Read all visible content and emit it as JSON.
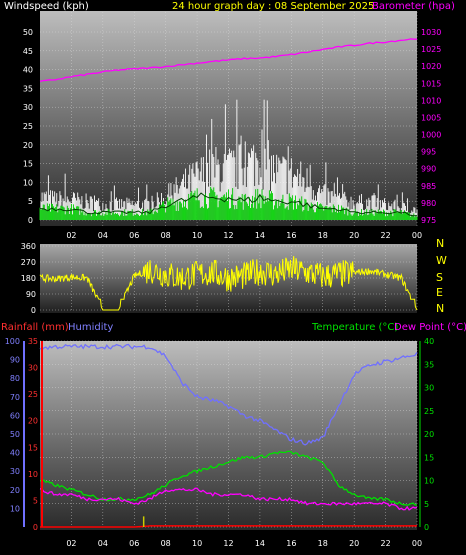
{
  "header": {
    "wind_title": "Windspeed (kph)",
    "day_title": "24 hour graph day : 08 September 2025",
    "baro_title": "Barometer (hpa)"
  },
  "mid_header": {
    "rain_title": "Rainfall (mm)",
    "humidity_title": "Humidity",
    "temp_title": "Temperature (°C)",
    "dew_title": "Dew Point (°C)"
  },
  "colors": {
    "wind_gust": "#ffffff",
    "wind_avg": "#00d000",
    "barometer": "#ff00ff",
    "direction": "#ffff00",
    "rain": "#ff0000",
    "humidity": "#7070ff",
    "temperature": "#00e000",
    "dewpoint": "#ff00ff"
  },
  "chart_data": [
    {
      "type": "line",
      "x_ticks": [
        "02",
        "04",
        "06",
        "08",
        "10",
        "12",
        "14",
        "16",
        "18",
        "20",
        "22",
        "00"
      ],
      "y_left_ticks": [
        "0",
        "5",
        "10",
        "15",
        "20",
        "25",
        "30",
        "35",
        "40",
        "45",
        "50"
      ],
      "y_right_ticks": [
        "975",
        "980",
        "985",
        "990",
        "995",
        "1000",
        "1005",
        "1010",
        "1015",
        "1020",
        "1025",
        "1030"
      ],
      "ylim": [
        0,
        50
      ],
      "y2lim": [
        975,
        1030
      ],
      "x_hours": [
        0,
        1,
        2,
        3,
        4,
        5,
        6,
        7,
        8,
        9,
        10,
        11,
        12,
        13,
        14,
        15,
        16,
        17,
        18,
        19,
        20,
        21,
        22,
        23,
        24
      ],
      "series": [
        {
          "axis": "left",
          "style": "gust",
          "values": [
            9,
            8,
            8,
            7,
            6,
            6,
            6,
            6,
            9,
            13,
            17,
            20,
            20,
            21,
            24,
            19,
            18,
            15,
            10,
            8,
            7,
            7,
            6,
            5,
            4
          ]
        },
        {
          "axis": "left",
          "style": "avg",
          "values": [
            3,
            3,
            3,
            2,
            2,
            2,
            2,
            2,
            4,
            5,
            6,
            6,
            6,
            5,
            6,
            5,
            5,
            4,
            3,
            3,
            2,
            2,
            2,
            2,
            1
          ]
        },
        {
          "axis": "right",
          "style": "barometer",
          "values": [
            1015.5,
            1016.1,
            1016.9,
            1017.6,
            1018.3,
            1018.9,
            1019.2,
            1019.5,
            1019.9,
            1020.4,
            1020.9,
            1021.4,
            1021.8,
            1022.2,
            1022.4,
            1022.8,
            1023.4,
            1024.1,
            1024.9,
            1025.6,
            1026.1,
            1026.7,
            1027.1,
            1027.6,
            1028.1
          ]
        }
      ]
    },
    {
      "type": "scatter",
      "y_left_ticks": [
        "0",
        "90",
        "180",
        "270",
        "360"
      ],
      "y_right_ticks": [
        "N",
        "W",
        "S",
        "E",
        "N"
      ],
      "ylim": [
        0,
        360
      ],
      "x_hours": [
        0,
        1,
        2,
        3,
        4,
        5,
        6,
        7,
        8,
        9,
        10,
        11,
        12,
        13,
        14,
        15,
        16,
        17,
        18,
        19,
        20,
        21,
        22,
        23,
        24
      ],
      "series": [
        {
          "style": "direction",
          "values": [
            180,
            175,
            185,
            180,
            0,
            0,
            190,
            230,
            200,
            180,
            200,
            210,
            180,
            190,
            220,
            200,
            230,
            210,
            190,
            200,
            210,
            220,
            200,
            180,
            0
          ]
        }
      ]
    },
    {
      "type": "line",
      "x_ticks": [
        "02",
        "04",
        "06",
        "08",
        "10",
        "12",
        "14",
        "16",
        "18",
        "20",
        "22",
        "00"
      ],
      "y_left_rain_ticks": [
        "0",
        "5",
        "10",
        "15",
        "20",
        "25",
        "30",
        "35"
      ],
      "y_left_hum_ticks": [
        "10",
        "20",
        "30",
        "40",
        "50",
        "60",
        "70",
        "80",
        "90",
        "100"
      ],
      "y_right_ticks": [
        "0",
        "5",
        "10",
        "15",
        "20",
        "25",
        "30",
        "35",
        "40"
      ],
      "hum_lim": [
        0,
        100
      ],
      "rain_lim": [
        0,
        35
      ],
      "temp_lim": [
        0,
        40
      ],
      "x_hours": [
        0,
        1,
        2,
        3,
        4,
        5,
        6,
        7,
        8,
        9,
        10,
        11,
        12,
        13,
        14,
        15,
        16,
        17,
        18,
        19,
        20,
        21,
        22,
        23,
        24
      ],
      "series": [
        {
          "axis": "hum",
          "style": "humidity",
          "values": [
            96,
            97,
            97,
            97,
            97,
            97,
            97,
            97,
            92,
            78,
            70,
            68,
            65,
            60,
            57,
            52,
            47,
            45,
            48,
            65,
            82,
            87,
            89,
            91,
            93
          ]
        },
        {
          "axis": "temp",
          "style": "temperature",
          "values": [
            10,
            9,
            8,
            7,
            6,
            6,
            6,
            7,
            9,
            11,
            12,
            13,
            14,
            15,
            15,
            16,
            16,
            15,
            14,
            9,
            7,
            6,
            6,
            5,
            5
          ]
        },
        {
          "axis": "temp",
          "style": "dewpoint",
          "values": [
            8,
            7,
            7,
            6,
            6,
            6,
            5,
            6,
            8,
            8,
            8,
            7,
            7,
            7,
            6,
            6,
            6,
            5,
            5,
            5,
            5,
            5,
            5,
            4,
            4
          ]
        },
        {
          "axis": "rain",
          "style": "rain",
          "values": [
            0,
            0,
            0,
            0,
            0,
            0,
            0,
            0.2,
            0.2,
            0.2,
            0.2,
            0.2,
            0.2,
            0.2,
            0.2,
            0.2,
            0.2,
            0.2,
            0.2,
            0.2,
            0.2,
            0.2,
            0.2,
            0.2,
            0.2
          ]
        }
      ]
    }
  ]
}
